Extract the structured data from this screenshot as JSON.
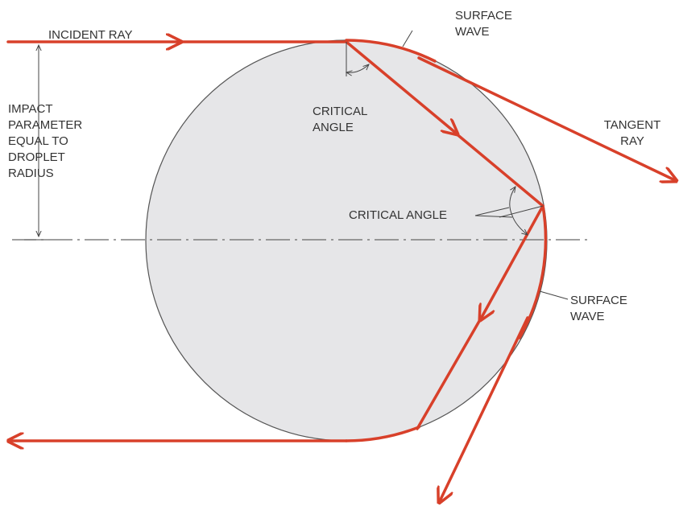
{
  "labels": [
    {
      "lines": [
        "INCIDENT RAY"
      ]
    },
    {
      "lines": [
        "SURFACE",
        "WAVE"
      ]
    },
    {
      "lines": [
        "CRITICAL",
        "ANGLE"
      ]
    },
    {
      "lines": [
        "IMPACT",
        "PARAMETER",
        "EQUAL TO",
        "DROPLET",
        "RADIUS"
      ]
    },
    {
      "lines": [
        "TANGENT",
        "RAY"
      ]
    },
    {
      "lines": [
        "CRITICAL ANGLE"
      ]
    },
    {
      "lines": [
        "SURFACE",
        "WAVE"
      ]
    }
  ]
}
